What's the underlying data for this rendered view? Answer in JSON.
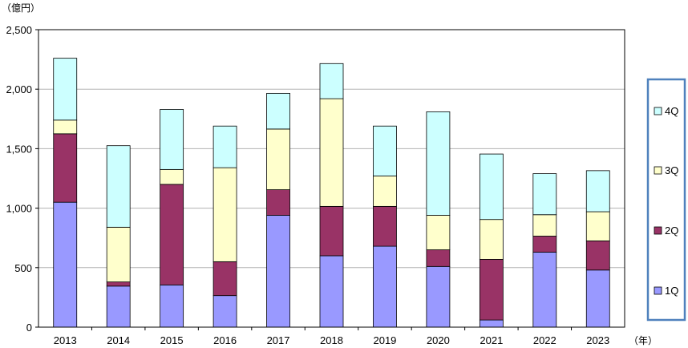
{
  "chart_data": {
    "type": "bar",
    "stacked": true,
    "title": "",
    "ylabel": "（億円）",
    "xlabel": "（年）",
    "ylim": [
      0,
      2500
    ],
    "yticks": [
      0,
      500,
      1000,
      1500,
      2000,
      2500
    ],
    "ytick_labels": [
      "0",
      "500",
      "1,000",
      "1,500",
      "2,000",
      "2,500"
    ],
    "grid": true,
    "legend_position": "right",
    "categories": [
      "2013",
      "2014",
      "2015",
      "2016",
      "2017",
      "2018",
      "2019",
      "2020",
      "2021",
      "2022",
      "2023"
    ],
    "series": [
      {
        "name": "1Q",
        "color": "#9999ff",
        "values": [
          1050,
          345,
          355,
          265,
          940,
          600,
          680,
          510,
          60,
          630,
          480
        ]
      },
      {
        "name": "2Q",
        "color": "#993366",
        "values": [
          575,
          35,
          845,
          285,
          215,
          415,
          335,
          140,
          510,
          135,
          245
        ]
      },
      {
        "name": "3Q",
        "color": "#ffffcc",
        "values": [
          115,
          460,
          125,
          790,
          510,
          905,
          255,
          290,
          335,
          180,
          245
        ]
      },
      {
        "name": "4Q",
        "color": "#ccffff",
        "values": [
          520,
          685,
          505,
          350,
          300,
          295,
          420,
          870,
          550,
          345,
          345
        ]
      }
    ],
    "legend_order": [
      "4Q",
      "3Q",
      "2Q",
      "1Q"
    ],
    "legend_border_color": "#4f81bd"
  }
}
